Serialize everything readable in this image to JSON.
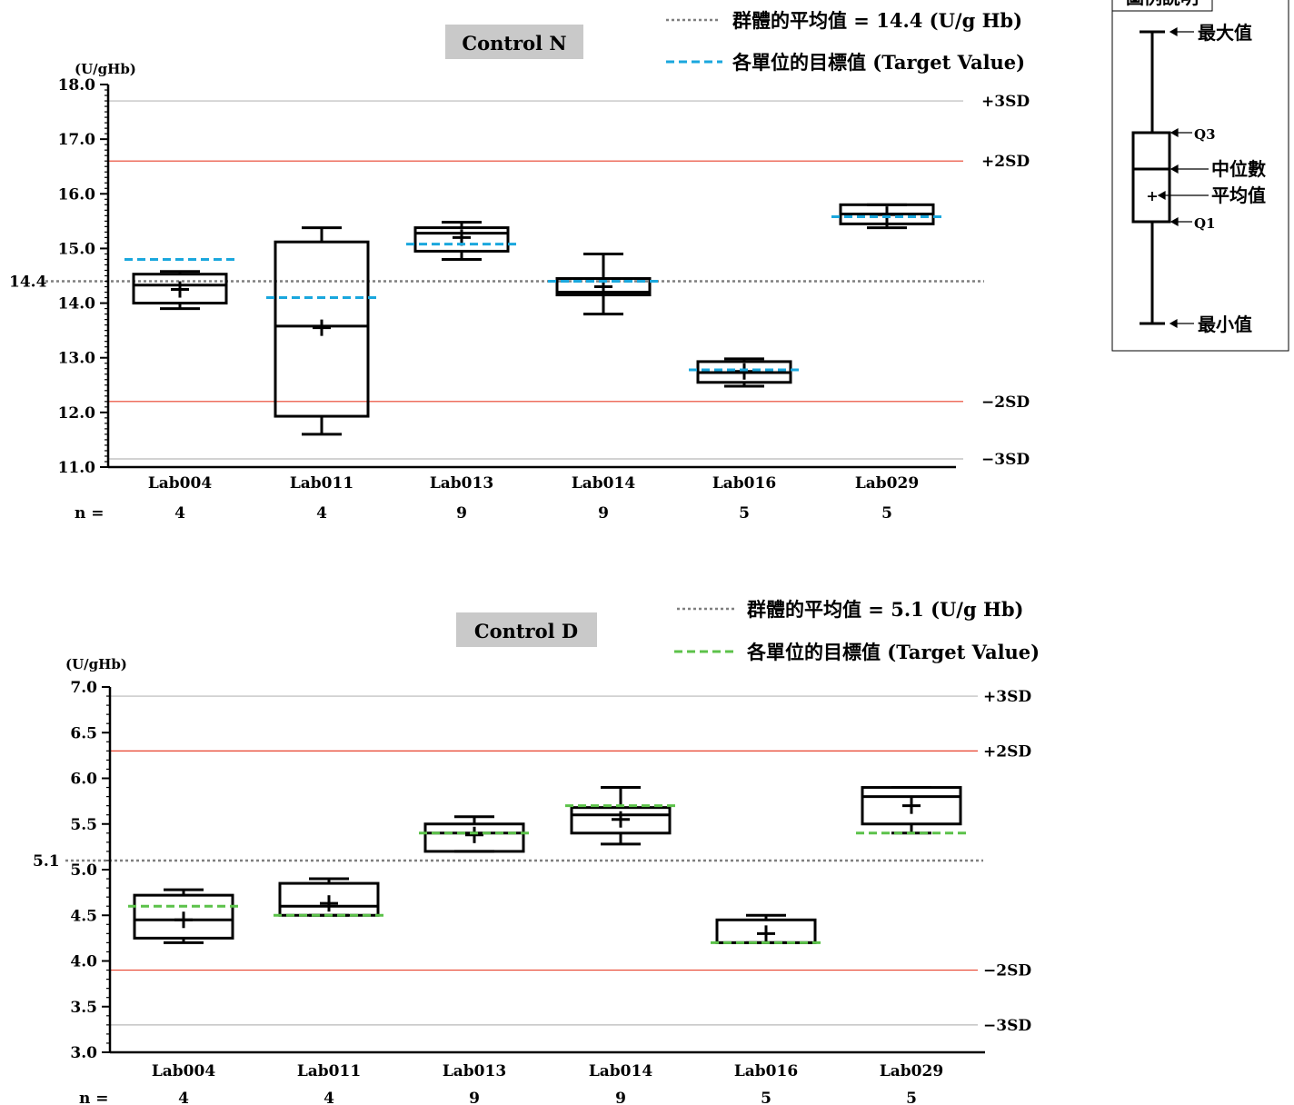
{
  "legend_box": {
    "title": "圖例說明",
    "max": "最大值",
    "q3": "Q3",
    "median": "中位數",
    "mean": "平均值",
    "q1": "Q1",
    "min": "最小值"
  },
  "colors": {
    "box": "#000000",
    "sd2_line": "#e8412c",
    "sd3_line": "#b8b8b8",
    "group_mean_line": "#7f7f7f",
    "title_bg": "#c9c9c9"
  },
  "chart_data": [
    {
      "type": "boxplot",
      "title": "Control N",
      "ylabel": "(U/gHb)",
      "ylim": [
        11.0,
        18.0
      ],
      "yticks": [
        "11.0",
        "12.0",
        "13.0",
        "14.0",
        "15.0",
        "16.0",
        "17.0",
        "18.0"
      ],
      "legend_mean": "群體的平均值 = 14.4 (U/g Hb)",
      "legend_target": "各單位的目標值 (Target Value)",
      "target_color": "#1aa7dd",
      "group_mean": 14.4,
      "group_mean_label": "14.4",
      "ref_lines": [
        {
          "label": "+3SD",
          "value": 17.7,
          "kind": "sd3"
        },
        {
          "label": "+2SD",
          "value": 16.6,
          "kind": "sd2"
        },
        {
          "label": "−2SD",
          "value": 12.2,
          "kind": "sd2"
        },
        {
          "label": "−3SD",
          "value": 11.15,
          "kind": "sd3"
        }
      ],
      "n_label": "n =",
      "categories": [
        "Lab004",
        "Lab011",
        "Lab013",
        "Lab014",
        "Lab016",
        "Lab029"
      ],
      "n": [
        "4",
        "4",
        "9",
        "9",
        "5",
        "5"
      ],
      "boxes": [
        {
          "min": 13.9,
          "q1": 14.0,
          "median": 14.33,
          "q3": 14.53,
          "max": 14.58,
          "mean": 14.25,
          "target": 14.8
        },
        {
          "min": 11.6,
          "q1": 11.93,
          "median": 13.58,
          "q3": 15.12,
          "max": 15.38,
          "mean": 13.55,
          "target": 14.1
        },
        {
          "min": 14.8,
          "q1": 14.95,
          "median": 15.28,
          "q3": 15.38,
          "max": 15.48,
          "mean": 15.2,
          "target": 15.08
        },
        {
          "min": 13.8,
          "q1": 14.15,
          "median": 14.2,
          "q3": 14.45,
          "max": 14.9,
          "mean": 14.3,
          "target": 14.4
        },
        {
          "min": 12.48,
          "q1": 12.55,
          "median": 12.73,
          "q3": 12.93,
          "max": 12.98,
          "mean": 12.75,
          "target": 12.78
        },
        {
          "min": 15.38,
          "q1": 15.45,
          "median": 15.63,
          "q3": 15.8,
          "max": 15.8,
          "mean": 15.62,
          "target": 15.58
        }
      ]
    },
    {
      "type": "boxplot",
      "title": "Control D",
      "ylabel": "(U/gHb)",
      "ylim": [
        3.0,
        7.0
      ],
      "yticks": [
        "3.0",
        "3.5",
        "4.0",
        "4.5",
        "5.0",
        "5.5",
        "6.0",
        "6.5",
        "7.0"
      ],
      "legend_mean": "群體的平均值 = 5.1 (U/g Hb)",
      "legend_target": "各單位的目標值 (Target Value)",
      "target_color": "#5cc24a",
      "group_mean": 5.1,
      "group_mean_label": "5.1",
      "ref_lines": [
        {
          "label": "+3SD",
          "value": 6.9,
          "kind": "sd3"
        },
        {
          "label": "+2SD",
          "value": 6.3,
          "kind": "sd2"
        },
        {
          "label": "−2SD",
          "value": 3.9,
          "kind": "sd2"
        },
        {
          "label": "−3SD",
          "value": 3.3,
          "kind": "sd3"
        }
      ],
      "n_label": "n =",
      "categories": [
        "Lab004",
        "Lab011",
        "Lab013",
        "Lab014",
        "Lab016",
        "Lab029"
      ],
      "n": [
        "4",
        "4",
        "9",
        "9",
        "5",
        "5"
      ],
      "boxes": [
        {
          "min": 4.2,
          "q1": 4.25,
          "median": 4.45,
          "q3": 4.72,
          "max": 4.78,
          "mean": 4.45,
          "target": 4.6
        },
        {
          "min": 4.5,
          "q1": 4.5,
          "median": 4.6,
          "q3": 4.85,
          "max": 4.9,
          "mean": 4.63,
          "target": 4.5
        },
        {
          "min": 5.2,
          "q1": 5.2,
          "median": 5.4,
          "q3": 5.5,
          "max": 5.58,
          "mean": 5.38,
          "target": 5.4
        },
        {
          "min": 5.28,
          "q1": 5.4,
          "median": 5.6,
          "q3": 5.68,
          "max": 5.9,
          "mean": 5.55,
          "target": 5.7
        },
        {
          "min": 4.2,
          "q1": 4.2,
          "median": 4.2,
          "q3": 4.45,
          "max": 4.5,
          "mean": 4.3,
          "target": 4.2
        },
        {
          "min": 5.4,
          "q1": 5.5,
          "median": 5.8,
          "q3": 5.9,
          "max": 5.9,
          "mean": 5.7,
          "target": 5.4
        }
      ]
    }
  ]
}
